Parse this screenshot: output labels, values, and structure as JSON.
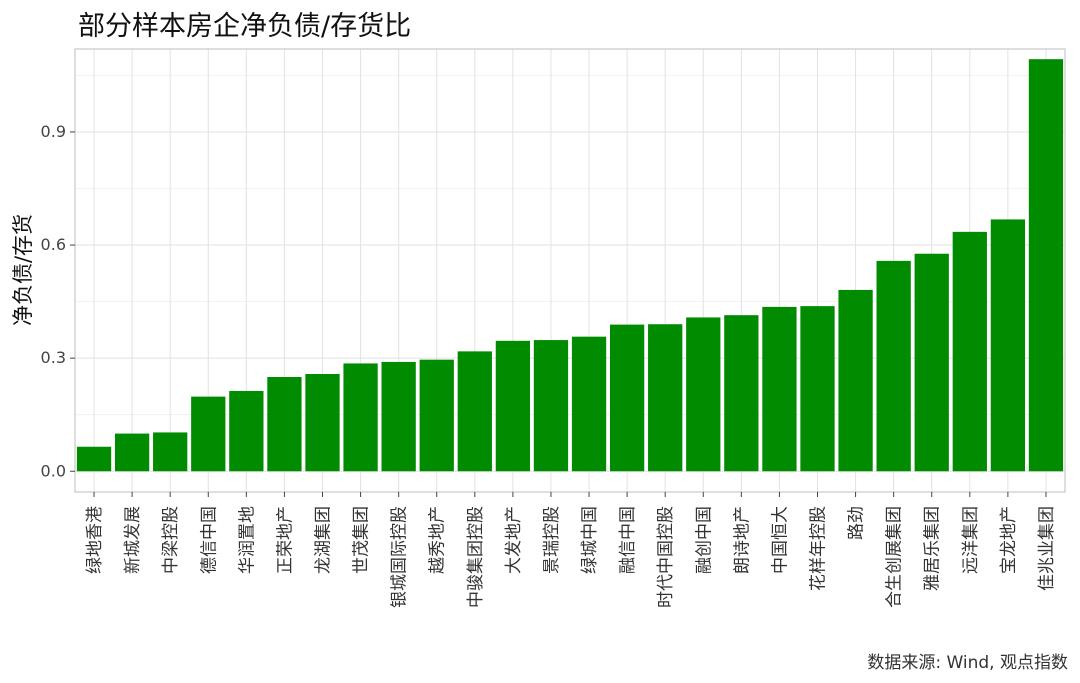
{
  "chart_data": {
    "type": "bar",
    "title": "部分样本房企净负债/存货比",
    "xlabel": "",
    "ylabel": "净负债/存货",
    "ylim": [
      -0.055,
      1.12
    ],
    "yticks": [
      0.0,
      0.3,
      0.6,
      0.9
    ],
    "ytick_labels": [
      "0.0",
      "0.3",
      "0.6",
      "0.9"
    ],
    "grid": true,
    "bar_color": "#008B00",
    "grid_color": "#e2e2e2",
    "categories": [
      "绿地香港",
      "新城发展",
      "中梁控股",
      "德信中国",
      "华润置地",
      "正荣地产",
      "龙湖集团",
      "世茂集团",
      "银城国际控股",
      "越秀地产",
      "中骏集团控股",
      "大发地产",
      "景瑞控股",
      "绿城中国",
      "融信中国",
      "时代中国控股",
      "融创中国",
      "朗诗地产",
      "中国恒大",
      "花样年控股",
      "路劲",
      "合生创展集团",
      "雅居乐集团",
      "远洋集团",
      "宝龙地产",
      "佳兆业集团"
    ],
    "values": [
      0.065,
      0.1,
      0.103,
      0.198,
      0.213,
      0.25,
      0.258,
      0.286,
      0.29,
      0.296,
      0.318,
      0.346,
      0.348,
      0.357,
      0.389,
      0.39,
      0.408,
      0.414,
      0.436,
      0.438,
      0.481,
      0.558,
      0.577,
      0.635,
      0.668,
      1.093
    ]
  },
  "source": "数据来源: Wind, 观点指数"
}
